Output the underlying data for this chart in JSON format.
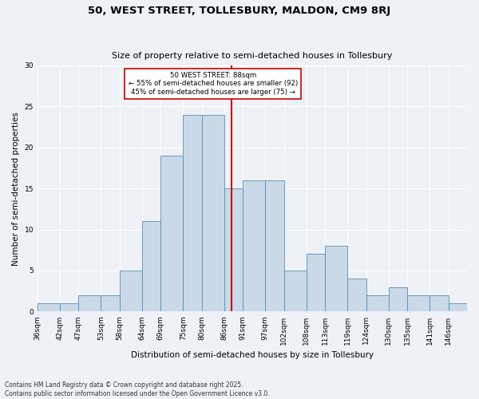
{
  "title1": "50, WEST STREET, TOLLESBURY, MALDON, CM9 8RJ",
  "title2": "Size of property relative to semi-detached houses in Tollesbury",
  "xlabel": "Distribution of semi-detached houses by size in Tollesbury",
  "ylabel": "Number of semi-detached properties",
  "bar_labels": [
    "36sqm",
    "42sqm",
    "47sqm",
    "53sqm",
    "58sqm",
    "64sqm",
    "69sqm",
    "75sqm",
    "80sqm",
    "86sqm",
    "91sqm",
    "97sqm",
    "102sqm",
    "108sqm",
    "113sqm",
    "119sqm",
    "124sqm",
    "130sqm",
    "135sqm",
    "141sqm",
    "146sqm"
  ],
  "bar_values": [
    1,
    1,
    2,
    2,
    5,
    11,
    19,
    24,
    24,
    15,
    16,
    16,
    5,
    7,
    8,
    4,
    2,
    3,
    2,
    2,
    1
  ],
  "bar_color": "#c9d9e8",
  "bar_edge_color": "#5a8db5",
  "vline_x": 88,
  "bin_edges": [
    36,
    42,
    47,
    53,
    58,
    64,
    69,
    75,
    80,
    86,
    91,
    97,
    102,
    108,
    113,
    119,
    124,
    130,
    135,
    141,
    146,
    151
  ],
  "vline_color": "#cc0000",
  "annotation_text": "50 WEST STREET: 88sqm\n← 55% of semi-detached houses are smaller (92)\n45% of semi-detached houses are larger (75) →",
  "annotation_box_color": "#ffffff",
  "annotation_box_edge": "#cc0000",
  "footer": "Contains HM Land Registry data © Crown copyright and database right 2025.\nContains public sector information licensed under the Open Government Licence v3.0.",
  "ylim": [
    0,
    30
  ],
  "yticks": [
    0,
    5,
    10,
    15,
    20,
    25,
    30
  ],
  "background_color": "#eef2f7",
  "grid_color": "#ffffff",
  "title1_fontsize": 9.5,
  "title2_fontsize": 8,
  "ylabel_fontsize": 7.5,
  "xlabel_fontsize": 7.5,
  "tick_fontsize": 6.5,
  "footer_fontsize": 5.5
}
